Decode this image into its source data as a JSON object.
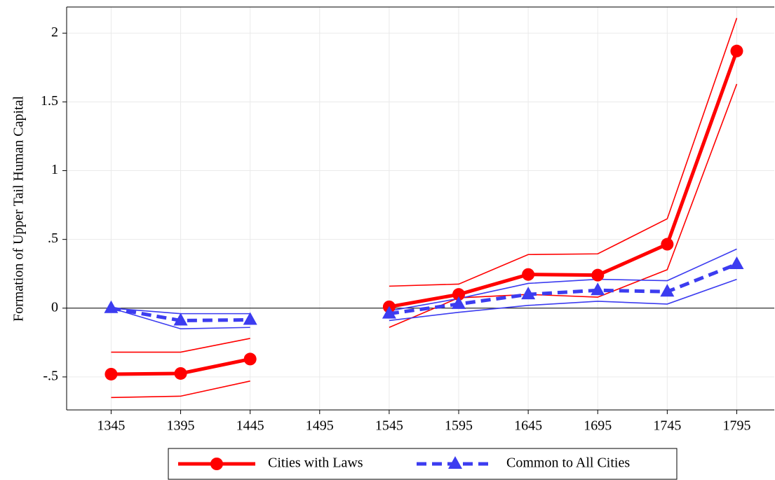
{
  "chart_data": {
    "type": "line",
    "y_label": "Formation of Upper Tail Human Capital",
    "x": [
      1345,
      1395,
      1445,
      1495,
      1545,
      1595,
      1645,
      1695,
      1745,
      1795
    ],
    "xlim": [
      1313,
      1822
    ],
    "xticks": [
      1345,
      1395,
      1445,
      1495,
      1545,
      1595,
      1645,
      1695,
      1745,
      1795
    ],
    "ylim": [
      -0.74,
      2.19
    ],
    "yticks": [
      {
        "value": -0.5,
        "label": "-.5"
      },
      0,
      {
        "value": 0.5,
        "label": ".5"
      },
      1,
      1.5,
      2
    ],
    "grid": true,
    "legend": "bottom",
    "series": [
      {
        "name": "Cities with Laws",
        "color": "#ff0000",
        "marker": "circle",
        "dashed": false,
        "values": [
          -0.48,
          -0.475,
          -0.37,
          null,
          0.01,
          0.1,
          0.245,
          0.24,
          0.465,
          1.87
        ],
        "upper": [
          -0.32,
          -0.32,
          -0.22,
          null,
          0.16,
          0.175,
          0.39,
          0.395,
          0.65,
          2.11
        ],
        "lower": [
          -0.65,
          -0.64,
          -0.53,
          null,
          -0.14,
          0.075,
          0.1,
          0.08,
          0.28,
          1.63
        ]
      },
      {
        "name": "Common to All Cities",
        "color": "#3c3cf0",
        "marker": "triangle",
        "dashed": true,
        "values": [
          0,
          -0.09,
          -0.085,
          null,
          -0.04,
          0.03,
          0.1,
          0.13,
          0.12,
          0.32
        ],
        "upper": [
          0,
          -0.04,
          -0.04,
          null,
          -0.02,
          0.07,
          0.18,
          0.21,
          0.2,
          0.43
        ],
        "lower": [
          0,
          -0.15,
          -0.14,
          null,
          -0.09,
          -0.03,
          0.02,
          0.05,
          0.03,
          0.21
        ]
      }
    ]
  }
}
